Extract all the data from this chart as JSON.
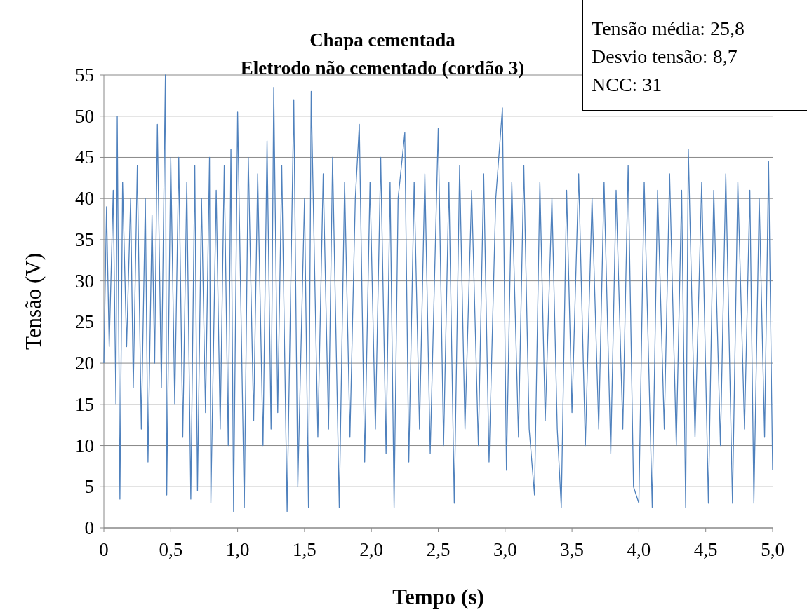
{
  "chart_data": {
    "type": "line",
    "title": "Chapa cementada",
    "subtitle": "Eletrodo não cementado (cordão 3)",
    "xlabel": "Tempo (s)",
    "ylabel": "Tensão (V)",
    "annotations": [
      "Tensão média: 25,8",
      "Desvio tensão: 8,7",
      "NCC: 31"
    ],
    "xlim": [
      0,
      5
    ],
    "xticks": [
      0,
      {
        "value": 0.5,
        "label": "0,5"
      },
      {
        "value": 1,
        "label": "1,0"
      },
      {
        "value": 1.5,
        "label": "1,5"
      },
      {
        "value": 2,
        "label": "2,0"
      },
      {
        "value": 2.5,
        "label": "2,5"
      },
      {
        "value": 3,
        "label": "3,0"
      },
      {
        "value": 3.5,
        "label": "3,5"
      },
      {
        "value": 4,
        "label": "4,0"
      },
      {
        "value": 4.5,
        "label": "4,5"
      },
      {
        "value": 5,
        "label": "5,0"
      }
    ],
    "ylim": [
      0,
      55
    ],
    "yticks": [
      0,
      5,
      10,
      15,
      20,
      25,
      30,
      35,
      40,
      45,
      50,
      55
    ],
    "grid": "y",
    "x": [
      0,
      0.02,
      0.04,
      0.07,
      0.09,
      0.1,
      0.12,
      0.14,
      0.17,
      0.2,
      0.22,
      0.25,
      0.28,
      0.31,
      0.33,
      0.36,
      0.38,
      0.4,
      0.43,
      0.46,
      0.47,
      0.5,
      0.53,
      0.56,
      0.59,
      0.62,
      0.65,
      0.68,
      0.7,
      0.73,
      0.76,
      0.79,
      0.8,
      0.84,
      0.87,
      0.9,
      0.93,
      0.95,
      0.97,
      1.0,
      1.05,
      1.08,
      1.12,
      1.15,
      1.19,
      1.22,
      1.25,
      1.27,
      1.3,
      1.33,
      1.37,
      1.42,
      1.45,
      1.5,
      1.53,
      1.55,
      1.6,
      1.64,
      1.68,
      1.71,
      1.76,
      1.8,
      1.84,
      1.88,
      1.91,
      1.95,
      1.99,
      2.03,
      2.07,
      2.11,
      2.14,
      2.17,
      2.2,
      2.25,
      2.28,
      2.32,
      2.36,
      2.4,
      2.44,
      2.5,
      2.54,
      2.58,
      2.62,
      2.66,
      2.7,
      2.75,
      2.8,
      2.84,
      2.88,
      2.93,
      2.98,
      3.01,
      3.05,
      3.1,
      3.14,
      3.18,
      3.22,
      3.26,
      3.3,
      3.35,
      3.39,
      3.42,
      3.46,
      3.5,
      3.55,
      3.6,
      3.65,
      3.7,
      3.74,
      3.79,
      3.83,
      3.88,
      3.92,
      3.96,
      4.0,
      4.04,
      4.1,
      4.14,
      4.19,
      4.23,
      4.28,
      4.32,
      4.35,
      4.37,
      4.42,
      4.47,
      4.52,
      4.56,
      4.61,
      4.65,
      4.7,
      4.74,
      4.79,
      4.83,
      4.86,
      4.9,
      4.94,
      4.97,
      5.0
    ],
    "series": [
      {
        "color": "#4f81bd",
        "values": [
          20,
          39,
          22,
          41,
          15,
          50,
          3.5,
          42,
          22,
          40,
          17,
          44,
          12,
          40,
          8,
          38,
          20,
          49,
          17,
          55,
          4,
          45,
          15,
          45,
          11,
          42,
          3.5,
          44,
          4.5,
          40,
          14,
          45,
          3,
          41,
          12,
          44,
          10,
          46,
          2,
          50.5,
          2.5,
          45,
          13,
          43,
          10,
          47,
          12,
          53.5,
          14,
          44,
          2,
          52,
          5,
          40,
          2.5,
          53,
          11,
          43,
          12,
          45,
          2.5,
          42,
          11,
          40,
          49,
          8,
          42,
          12,
          45,
          9,
          42,
          2.5,
          40,
          48,
          8,
          42,
          12,
          43,
          9,
          48.5,
          10,
          42,
          3,
          44,
          12,
          41,
          10,
          43,
          8,
          40,
          51,
          7,
          42,
          11,
          44,
          12,
          4,
          42,
          13,
          40,
          12,
          2.5,
          41,
          14,
          43,
          10,
          40,
          12,
          42,
          9,
          41,
          12,
          44,
          5,
          3,
          42,
          2.5,
          41,
          12,
          43,
          10,
          41,
          2.5,
          46,
          11,
          42,
          3,
          41,
          10,
          43,
          3,
          42,
          12,
          41,
          3,
          40,
          11,
          44.5,
          7
        ]
      }
    ]
  }
}
